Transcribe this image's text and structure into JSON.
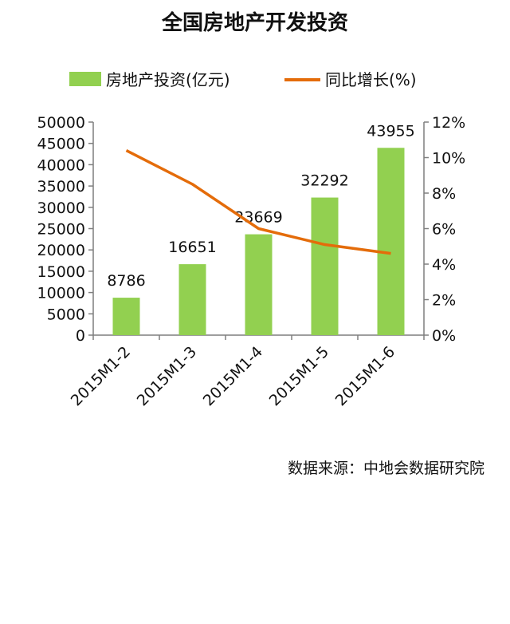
{
  "chart_data": {
    "type": "bar+line",
    "title": "全国房地产开发投资",
    "categories": [
      "2015M1-2",
      "2015M1-3",
      "2015M1-4",
      "2015M1-5",
      "2015M1-6"
    ],
    "series": [
      {
        "name": "房地产投资(亿元)",
        "type": "bar",
        "axis": "left",
        "color": "#92D050",
        "values": [
          8786,
          16651,
          23669,
          32292,
          43955
        ]
      },
      {
        "name": "同比增长(%)",
        "type": "line",
        "axis": "right",
        "color": "#E46C0A",
        "values": [
          10.4,
          8.5,
          6.0,
          5.1,
          4.6
        ]
      }
    ],
    "y_left": {
      "range": [
        0,
        50000
      ],
      "ticks": [
        "0",
        "5000",
        "10000",
        "15000",
        "20000",
        "25000",
        "30000",
        "35000",
        "40000",
        "45000",
        "50000"
      ]
    },
    "y_right": {
      "range": [
        0,
        12
      ],
      "ticks": [
        "0%",
        "2%",
        "4%",
        "6%",
        "8%",
        "10%",
        "12%"
      ]
    },
    "gridlines": false,
    "legend_position": "top"
  },
  "source_note": "数据来源：中地会数据研究院"
}
